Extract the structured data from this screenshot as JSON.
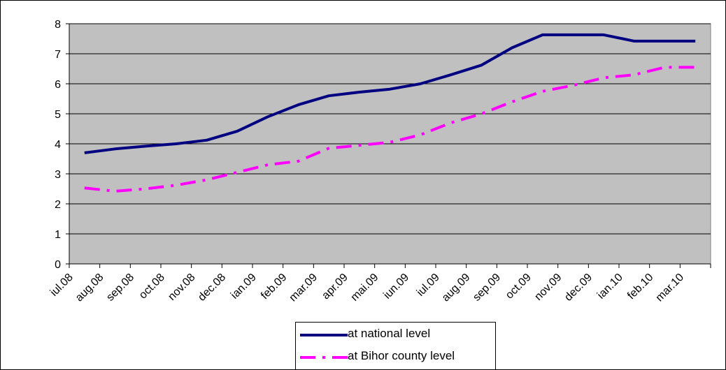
{
  "chart_data": {
    "type": "line",
    "title": "",
    "xlabel": "",
    "ylabel": "",
    "ylim": [
      0,
      8
    ],
    "yticks": [
      0,
      1,
      2,
      3,
      4,
      5,
      6,
      7,
      8
    ],
    "grid": "horizontal",
    "background": "#c0c0c0",
    "legend_position": "bottom",
    "categories": [
      "iul.08",
      "aug.08",
      "sep.08",
      "oct.08",
      "nov.08",
      "dec.08",
      "ian.09",
      "feb.09",
      "mar.09",
      "apr.09",
      "mai.09",
      "iun.09",
      "iul.09",
      "aug.09",
      "sep.09",
      "oct.09",
      "nov.09",
      "dec.09",
      "ian.10",
      "feb.10",
      "mar.10"
    ],
    "series": [
      {
        "name": "at national level",
        "color": "#000080",
        "dash": "solid",
        "values": [
          3.7,
          3.83,
          3.92,
          4.0,
          4.12,
          4.42,
          4.9,
          5.3,
          5.6,
          5.72,
          5.82,
          6.0,
          6.3,
          6.62,
          7.2,
          7.63,
          7.63,
          7.63,
          7.42,
          7.42,
          7.42
        ]
      },
      {
        "name": "at Bihor county level",
        "color": "#ff00ff",
        "dash": "dashdot",
        "values": [
          2.53,
          2.42,
          2.5,
          2.62,
          2.8,
          3.05,
          3.3,
          3.42,
          3.85,
          3.95,
          4.05,
          4.3,
          4.7,
          5.0,
          5.4,
          5.75,
          5.95,
          6.2,
          6.3,
          6.55,
          6.55
        ]
      }
    ]
  }
}
